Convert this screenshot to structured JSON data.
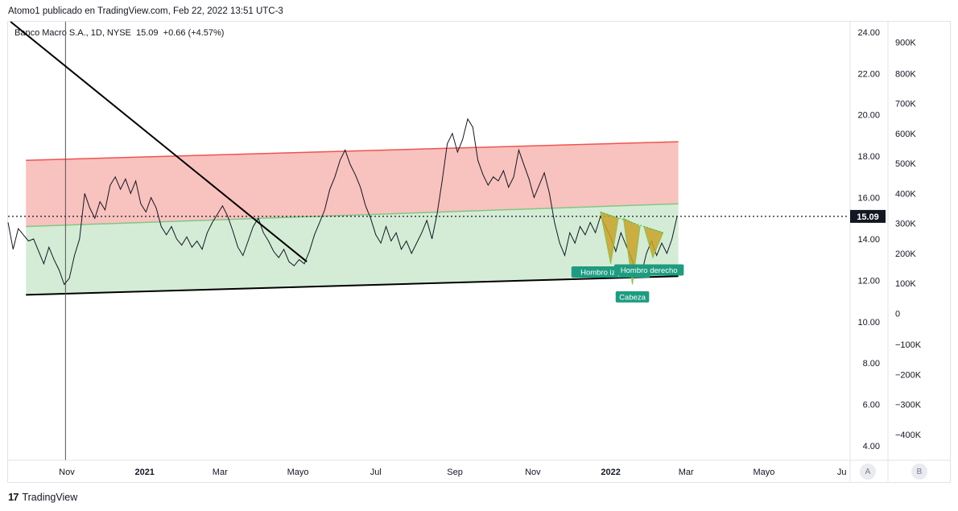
{
  "header": {
    "publisher": "Atomo1 publicado en TradingView.com, Feb 22, 2022 13:51 UTC-3"
  },
  "symbol_line": "Banco Macro S.A., 1D, NYSE  15.09  +0.66 (+4.57%)",
  "footer": {
    "brand": "TradingView",
    "logo_glyph": "17"
  },
  "axis_buttons": {
    "a": "A",
    "b": "B"
  },
  "colors": {
    "resistance_zone": "#f8c2be",
    "support_zone": "#d4ecd6",
    "resistance_line": "#ef5350",
    "mid_line": "#81c784",
    "pattern_fill": "#c9a227",
    "label_bg": "#1e9c80",
    "price_tag_bg": "#131722"
  },
  "chart_data": {
    "type": "line",
    "title": "",
    "series": [
      {
        "name": "",
        "points": [
          [
            "2020-09-16",
            14.8
          ],
          [
            "2020-09-20",
            13.5
          ],
          [
            "2020-09-24",
            14.5
          ],
          [
            "2020-09-28",
            14.2
          ],
          [
            "2020-10-02",
            13.9
          ],
          [
            "2020-10-06",
            14.0
          ],
          [
            "2020-10-10",
            13.4
          ],
          [
            "2020-10-14",
            12.8
          ],
          [
            "2020-10-18",
            13.6
          ],
          [
            "2020-10-22",
            13.0
          ],
          [
            "2020-10-26",
            12.5
          ],
          [
            "2020-10-30",
            11.8
          ],
          [
            "2020-11-03",
            12.1
          ],
          [
            "2020-11-07",
            13.2
          ],
          [
            "2020-11-11",
            14.0
          ],
          [
            "2020-11-15",
            16.2
          ],
          [
            "2020-11-19",
            15.5
          ],
          [
            "2020-11-23",
            15.0
          ],
          [
            "2020-11-27",
            15.8
          ],
          [
            "2020-12-01",
            15.4
          ],
          [
            "2020-12-05",
            16.6
          ],
          [
            "2020-12-09",
            17.0
          ],
          [
            "2020-12-13",
            16.4
          ],
          [
            "2020-12-17",
            16.9
          ],
          [
            "2020-12-21",
            16.2
          ],
          [
            "2020-12-25",
            16.8
          ],
          [
            "2020-12-29",
            15.7
          ],
          [
            "2021-01-02",
            15.3
          ],
          [
            "2021-01-06",
            16.0
          ],
          [
            "2021-01-10",
            15.5
          ],
          [
            "2021-01-14",
            14.6
          ],
          [
            "2021-01-18",
            14.2
          ],
          [
            "2021-01-22",
            14.6
          ],
          [
            "2021-01-26",
            14.0
          ],
          [
            "2021-01-30",
            13.7
          ],
          [
            "2021-02-03",
            14.1
          ],
          [
            "2021-02-07",
            13.6
          ],
          [
            "2021-02-11",
            13.9
          ],
          [
            "2021-02-15",
            13.5
          ],
          [
            "2021-02-19",
            14.3
          ],
          [
            "2021-02-23",
            14.8
          ],
          [
            "2021-02-27",
            15.2
          ],
          [
            "2021-03-03",
            15.6
          ],
          [
            "2021-03-07",
            15.1
          ],
          [
            "2021-03-11",
            14.4
          ],
          [
            "2021-03-15",
            13.6
          ],
          [
            "2021-03-19",
            13.2
          ],
          [
            "2021-03-23",
            13.9
          ],
          [
            "2021-03-27",
            14.6
          ],
          [
            "2021-03-31",
            15.0
          ],
          [
            "2021-04-04",
            14.3
          ],
          [
            "2021-04-08",
            13.9
          ],
          [
            "2021-04-12",
            13.4
          ],
          [
            "2021-04-16",
            13.1
          ],
          [
            "2021-04-20",
            13.5
          ],
          [
            "2021-04-24",
            12.9
          ],
          [
            "2021-04-28",
            12.7
          ],
          [
            "2021-05-02",
            13.0
          ],
          [
            "2021-05-06",
            12.8
          ],
          [
            "2021-05-10",
            13.4
          ],
          [
            "2021-05-14",
            14.2
          ],
          [
            "2021-05-18",
            14.8
          ],
          [
            "2021-05-22",
            15.4
          ],
          [
            "2021-05-26",
            16.4
          ],
          [
            "2021-05-30",
            17.0
          ],
          [
            "2021-06-03",
            17.8
          ],
          [
            "2021-06-07",
            18.3
          ],
          [
            "2021-06-11",
            17.6
          ],
          [
            "2021-06-15",
            17.1
          ],
          [
            "2021-06-19",
            16.5
          ],
          [
            "2021-06-23",
            15.6
          ],
          [
            "2021-06-27",
            15.0
          ],
          [
            "2021-07-01",
            14.2
          ],
          [
            "2021-07-05",
            13.8
          ],
          [
            "2021-07-09",
            14.6
          ],
          [
            "2021-07-13",
            13.9
          ],
          [
            "2021-07-17",
            14.3
          ],
          [
            "2021-07-21",
            13.5
          ],
          [
            "2021-07-25",
            13.9
          ],
          [
            "2021-07-29",
            13.3
          ],
          [
            "2021-08-02",
            13.8
          ],
          [
            "2021-08-06",
            14.3
          ],
          [
            "2021-08-10",
            14.9
          ],
          [
            "2021-08-14",
            14.0
          ],
          [
            "2021-08-18",
            15.2
          ],
          [
            "2021-08-22",
            16.8
          ],
          [
            "2021-08-26",
            18.6
          ],
          [
            "2021-08-30",
            19.1
          ],
          [
            "2021-09-03",
            18.2
          ],
          [
            "2021-09-07",
            18.8
          ],
          [
            "2021-09-11",
            19.8
          ],
          [
            "2021-09-15",
            19.4
          ],
          [
            "2021-09-19",
            17.8
          ],
          [
            "2021-09-23",
            17.1
          ],
          [
            "2021-09-27",
            16.6
          ],
          [
            "2021-10-01",
            17.0
          ],
          [
            "2021-10-05",
            16.8
          ],
          [
            "2021-10-09",
            17.3
          ],
          [
            "2021-10-13",
            16.5
          ],
          [
            "2021-10-17",
            17.0
          ],
          [
            "2021-10-21",
            18.3
          ],
          [
            "2021-10-25",
            17.6
          ],
          [
            "2021-10-29",
            16.9
          ],
          [
            "2021-11-02",
            16.0
          ],
          [
            "2021-11-06",
            16.6
          ],
          [
            "2021-11-10",
            17.2
          ],
          [
            "2021-11-14",
            16.2
          ],
          [
            "2021-11-18",
            14.8
          ],
          [
            "2021-11-22",
            13.8
          ],
          [
            "2021-11-26",
            13.2
          ],
          [
            "2021-11-30",
            14.3
          ],
          [
            "2021-12-04",
            13.8
          ],
          [
            "2021-12-08",
            14.6
          ],
          [
            "2021-12-12",
            14.2
          ],
          [
            "2021-12-16",
            14.8
          ],
          [
            "2021-12-20",
            14.3
          ],
          [
            "2021-12-24",
            15.1
          ],
          [
            "2021-12-28",
            14.6
          ],
          [
            "2022-01-01",
            14.1
          ],
          [
            "2022-01-05",
            13.4
          ],
          [
            "2022-01-09",
            14.3
          ],
          [
            "2022-01-13",
            13.7
          ],
          [
            "2022-01-17",
            13.1
          ],
          [
            "2022-01-21",
            12.4
          ],
          [
            "2022-01-25",
            12.3
          ],
          [
            "2022-01-29",
            13.3
          ],
          [
            "2022-02-02",
            13.9
          ],
          [
            "2022-02-06",
            13.2
          ],
          [
            "2022-02-10",
            13.8
          ],
          [
            "2022-02-14",
            13.3
          ],
          [
            "2022-02-18",
            14.0
          ],
          [
            "2022-02-22",
            15.09
          ]
        ]
      }
    ],
    "x_ticks": [
      {
        "date": "2020-11-01",
        "label": "Nov",
        "bold": false
      },
      {
        "date": "2021-01-01",
        "label": "2021",
        "bold": true
      },
      {
        "date": "2021-03-01",
        "label": "Mar",
        "bold": false
      },
      {
        "date": "2021-05-01",
        "label": "Mayo",
        "bold": false
      },
      {
        "date": "2021-07-01",
        "label": "Jul",
        "bold": false
      },
      {
        "date": "2021-09-01",
        "label": "Sep",
        "bold": false
      },
      {
        "date": "2021-11-01",
        "label": "Nov",
        "bold": false
      },
      {
        "date": "2022-01-01",
        "label": "2022",
        "bold": true
      },
      {
        "date": "2022-03-01",
        "label": "Mar",
        "bold": false
      },
      {
        "date": "2022-05-01",
        "label": "Mayo",
        "bold": false
      },
      {
        "date": "2022-07-01",
        "label": "Ju",
        "bold": false
      }
    ],
    "x_range": [
      "2020-09-16",
      "2022-07-05"
    ],
    "y_range": [
      3.3,
      24.5
    ],
    "y_ticks": [
      "24.00",
      "22.00",
      "20.00",
      "18.00",
      "16.00",
      "14.00",
      "12.00",
      "10.00",
      "8.00",
      "6.00",
      "4.00"
    ],
    "volume_ticks": [
      {
        "label": "900K",
        "price": 23.5
      },
      {
        "label": "800K",
        "price": 22.0
      },
      {
        "label": "700K",
        "price": 20.55
      },
      {
        "label": "600K",
        "price": 19.1
      },
      {
        "label": "500K",
        "price": 17.65
      },
      {
        "label": "400K",
        "price": 16.2
      },
      {
        "label": "300K",
        "price": 14.75
      },
      {
        "label": "200K",
        "price": 13.3
      },
      {
        "label": "100K",
        "price": 11.85
      },
      {
        "label": "0",
        "price": 10.4
      },
      {
        "label": "−100K",
        "price": 8.9
      },
      {
        "label": "−200K",
        "price": 7.45
      },
      {
        "label": "−300K",
        "price": 6.0
      },
      {
        "label": "−400K",
        "price": 4.55
      }
    ],
    "last_price": {
      "value": 15.09,
      "label": "15.09"
    },
    "vertical_marker": "2020-10-31",
    "resistance_zone": {
      "from": "2020-09-30",
      "to": "2022-02-23",
      "top": [
        17.8,
        18.7
      ],
      "bottom": [
        14.6,
        15.7
      ]
    },
    "support_zone": {
      "from": "2020-09-30",
      "to": "2022-02-23",
      "top": [
        14.6,
        15.7
      ],
      "bottom": [
        11.3,
        12.2
      ]
    },
    "downtrend_line": {
      "from": [
        "2020-09-18",
        24.5
      ],
      "to": [
        "2021-05-08",
        12.9
      ]
    },
    "pattern": {
      "triangles": [
        [
          [
            "2021-12-24",
            15.3
          ],
          [
            "2022-01-07",
            15.0
          ],
          [
            "2022-01-01",
            12.8
          ]
        ],
        [
          [
            "2022-01-11",
            15.0
          ],
          [
            "2022-01-24",
            14.6
          ],
          [
            "2022-01-18",
            11.8
          ]
        ],
        [
          [
            "2022-01-27",
            14.6
          ],
          [
            "2022-02-11",
            14.3
          ],
          [
            "2022-02-03",
            13.1
          ]
        ]
      ],
      "neckline": [
        [
          "2021-12-24",
          15.3
        ],
        [
          "2022-02-11",
          14.3
        ]
      ]
    },
    "annotations": [
      {
        "text": "Hombro izquierdo",
        "date": "2022-01-01",
        "price": 12.4
      },
      {
        "text": "Hombro derecho",
        "date": "2022-01-31",
        "price": 12.5
      },
      {
        "text": "Cabeza",
        "date": "2022-01-18",
        "price": 11.2
      }
    ]
  }
}
